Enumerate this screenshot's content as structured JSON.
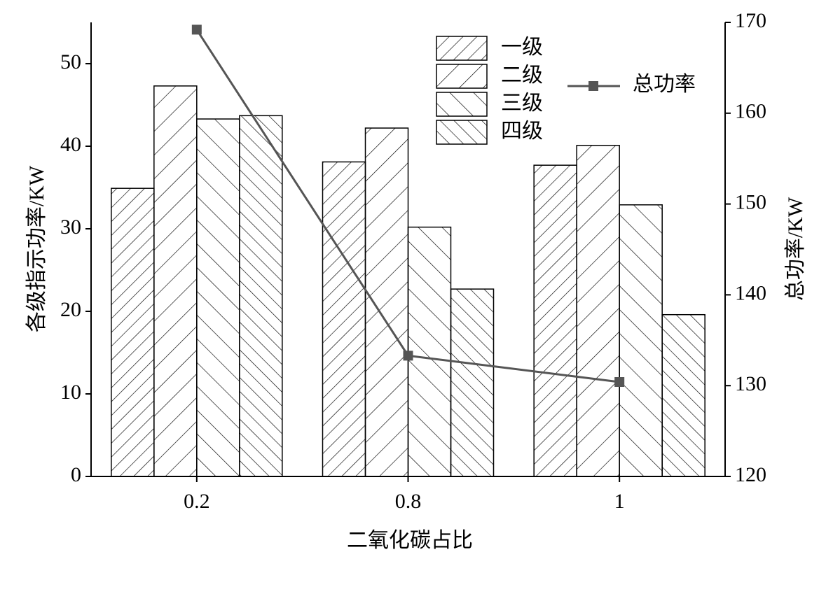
{
  "chart_data": {
    "type": "bar",
    "x_label": "二氧化碳占比",
    "y_label": "各级指示功率/KW",
    "y2_label": "总功率/KW",
    "categories": [
      "0.2",
      "0.8",
      "1"
    ],
    "series": [
      {
        "name": "一级",
        "color": "#000000",
        "values": [
          34.9,
          38.1,
          37.7
        ]
      },
      {
        "name": "二级",
        "color": "#000000",
        "values": [
          47.3,
          42.2,
          40.1
        ]
      },
      {
        "name": "三级",
        "color": "#000000",
        "values": [
          43.3,
          30.2,
          32.9
        ]
      },
      {
        "name": "四级",
        "color": "#000000",
        "values": [
          43.7,
          22.7,
          19.6
        ]
      },
      {
        "name": "总功率",
        "color": "#555555",
        "type": "line",
        "axis": "y2",
        "values": [
          169.2,
          133.3,
          130.4
        ]
      }
    ],
    "ylim": [
      0,
      55
    ],
    "yticks": [
      0,
      10,
      20,
      30,
      40,
      50
    ],
    "y2lim": [
      120,
      170
    ],
    "y2ticks": [
      120,
      130,
      140,
      150,
      160,
      170
    ]
  }
}
